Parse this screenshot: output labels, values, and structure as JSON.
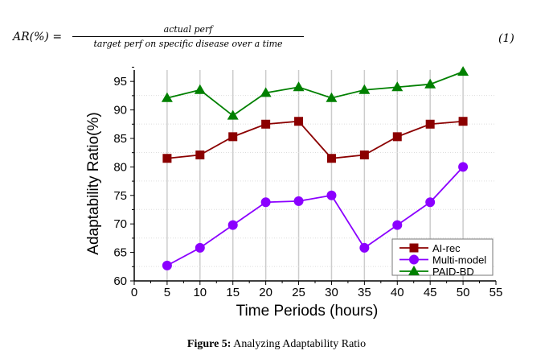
{
  "equation": {
    "lhs": "AR(%) =",
    "numerator": "actual perf",
    "denominator": "target perf on specific disease over a time",
    "number": "(1)"
  },
  "caption": {
    "label": "Figure 5:",
    "text": " Analyzing Adaptability Ratio"
  },
  "chart_data": {
    "type": "line",
    "title": "",
    "xlabel": "Time Periods (hours)",
    "ylabel": "Adaptability Ratio(%)",
    "xlim": [
      0,
      55
    ],
    "ylim": [
      60,
      97
    ],
    "xticks": [
      0,
      5,
      10,
      15,
      20,
      25,
      30,
      35,
      40,
      45,
      50,
      55
    ],
    "yticks": [
      60,
      65,
      70,
      75,
      80,
      85,
      90,
      95
    ],
    "x": [
      5,
      10,
      15,
      20,
      25,
      30,
      35,
      40,
      45,
      50
    ],
    "legend": "bottom-right",
    "grid": "vertical lines solid, horizontal dotted",
    "series": [
      {
        "name": "AI-rec",
        "color": "#8b0000",
        "marker": "square",
        "values": [
          81.5,
          82.1,
          85.3,
          87.5,
          88,
          81.5,
          82.1,
          85.3,
          87.5,
          88
        ]
      },
      {
        "name": "Multi-model",
        "color": "#8b00ff",
        "marker": "circle",
        "values": [
          62.7,
          65.8,
          69.8,
          73.8,
          74,
          75,
          65.8,
          69.8,
          73.8,
          80
        ]
      },
      {
        "name": "PAID-BD",
        "color": "#008000",
        "marker": "triangle",
        "values": [
          92.1,
          93.5,
          89,
          93,
          94,
          92.1,
          93.5,
          94,
          94.5,
          96.7
        ]
      }
    ]
  }
}
